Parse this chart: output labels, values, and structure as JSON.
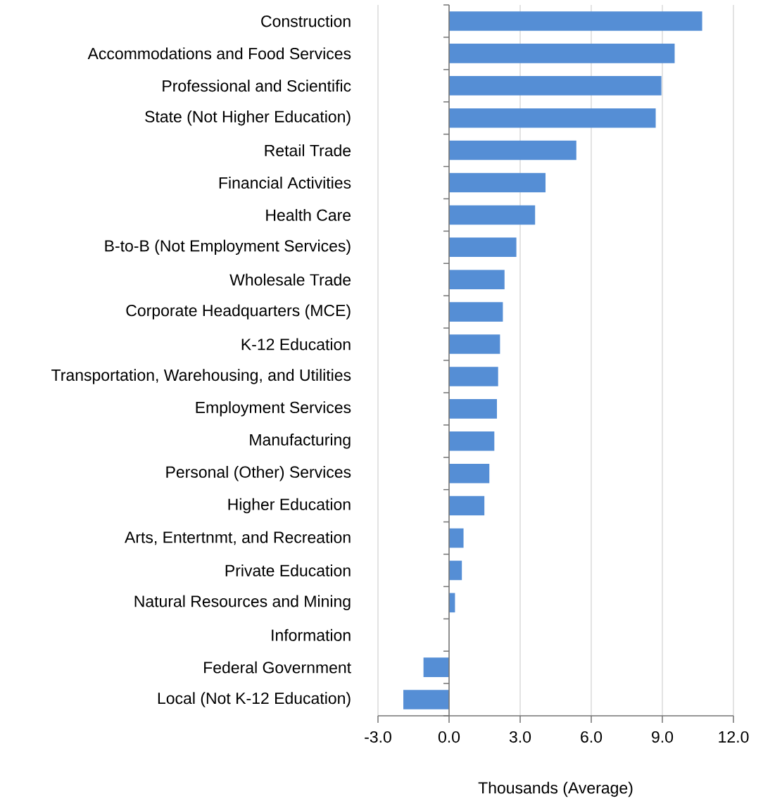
{
  "chart_data": {
    "type": "bar",
    "orientation": "horizontal",
    "xlabel": "Thousands  (Average)",
    "categories": [
      "Construction",
      "Accommodations and Food Services",
      "Professional and Scientific",
      "State (Not Higher Education)",
      "Retail Trade",
      "Financial Activities",
      "Health Care",
      "B-to-B (Not Employment Services)",
      "Wholesale Trade",
      "Corporate Headquarters (MCE)",
      "K-12 Education",
      "Transportation, Warehousing, and Utilities",
      "Employment Services",
      "Manufacturing",
      "Personal (Other) Services",
      "Higher Education",
      "Arts, Entertnmt, and Recreation",
      "Private Education",
      "Natural Resources and Mining",
      "Information",
      "Federal Government",
      "Local (Not K-12 Education)"
    ],
    "values": [
      10.68,
      9.52,
      8.96,
      8.72,
      5.37,
      4.07,
      3.63,
      2.84,
      2.34,
      2.27,
      2.15,
      2.07,
      2.02,
      1.91,
      1.7,
      1.49,
      0.61,
      0.54,
      0.25,
      0,
      -1.08,
      -1.93
    ],
    "color": "#558ed5",
    "xlim": [
      -3,
      12
    ],
    "xticks": [
      {
        "value": -3,
        "label": "-3.0"
      },
      {
        "value": 0,
        "label": "0.0"
      },
      {
        "value": 3,
        "label": "3.0"
      },
      {
        "value": 6,
        "label": "6.0"
      },
      {
        "value": 9,
        "label": "9.0"
      },
      {
        "value": 12,
        "label": "12.0"
      }
    ],
    "grid": "x"
  }
}
